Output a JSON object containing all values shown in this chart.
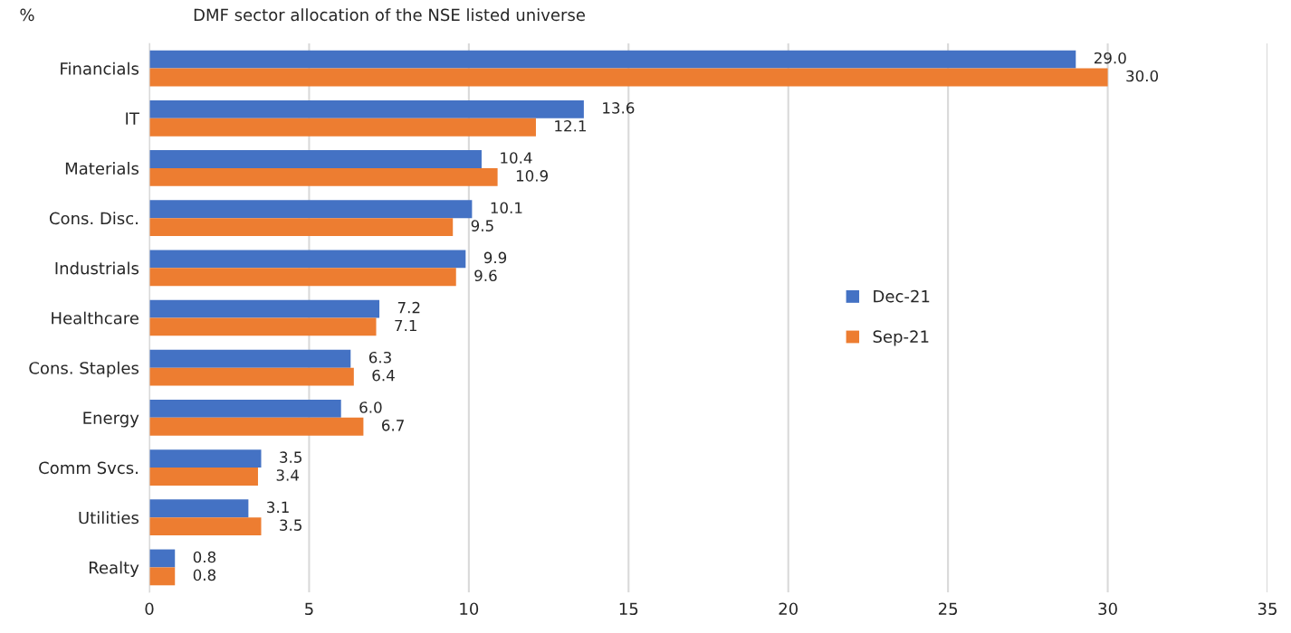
{
  "chart_data": {
    "type": "bar",
    "orientation": "horizontal",
    "title": "DMF sector allocation of the NSE listed universe",
    "ylabel": "%",
    "categories": [
      "Financials",
      "IT",
      "Materials",
      "Cons. Disc.",
      "Industrials",
      "Healthcare",
      "Cons. Staples",
      "Energy",
      "Comm Svcs.",
      "Utilities",
      "Realty"
    ],
    "series": [
      {
        "name": "Dec-21",
        "color": "#4472c4",
        "values": [
          29.0,
          13.6,
          10.4,
          10.1,
          9.9,
          7.2,
          6.3,
          6.0,
          3.5,
          3.1,
          0.8
        ],
        "value_labels": [
          "29.0",
          "13.6",
          "10.4",
          "10.1",
          "9.9",
          "7.2",
          "6.3",
          "6.0",
          "3.5",
          "3.1",
          "0.8"
        ]
      },
      {
        "name": "Sep-21",
        "color": "#ed7d31",
        "values": [
          30.0,
          12.1,
          10.9,
          9.5,
          9.6,
          7.1,
          6.4,
          6.7,
          3.4,
          3.5,
          0.8
        ],
        "value_labels": [
          "30.0",
          "12.1",
          "10.9",
          "9.5",
          "9.6",
          "7.1",
          "6.4",
          "6.7",
          "3.4",
          "3.5",
          "0.8"
        ]
      }
    ],
    "xlim": [
      0,
      35
    ],
    "xticks": [
      0,
      5,
      10,
      15,
      20,
      25,
      30,
      35
    ],
    "grid": "x",
    "legend": "right"
  }
}
